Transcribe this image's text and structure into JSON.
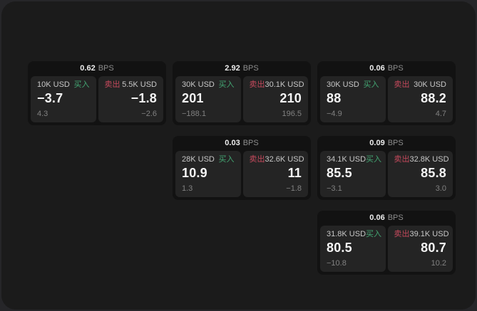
{
  "labels": {
    "bps_unit": "BPS",
    "buy": "买入",
    "sell": "卖出"
  },
  "colors": {
    "buy_green": "#43a572",
    "sell_red": "#c4495c",
    "backdrop": "#262629",
    "surface": "#1b1b1b",
    "card": "#121212",
    "subpanel": "#242424"
  },
  "cards": [
    {
      "col": 1,
      "row": 1,
      "bps": "0.62",
      "buy": {
        "amount": "10K USD",
        "price": "−3.7",
        "change": "4.3"
      },
      "sell": {
        "amount": "5.5K USD",
        "price": "−1.8",
        "change": "−2.6"
      }
    },
    {
      "col": 2,
      "row": 1,
      "bps": "2.92",
      "buy": {
        "amount": "30K USD",
        "price": "201",
        "change": "−188.1"
      },
      "sell": {
        "amount": "30.1K USD",
        "price": "210",
        "change": "196.5"
      }
    },
    {
      "col": 3,
      "row": 1,
      "bps": "0.06",
      "buy": {
        "amount": "30K USD",
        "price": "88",
        "change": "−4.9"
      },
      "sell": {
        "amount": "30K USD",
        "price": "88.2",
        "change": "4.7"
      }
    },
    {
      "col": 2,
      "row": 2,
      "bps": "0.03",
      "buy": {
        "amount": "28K USD",
        "price": "10.9",
        "change": "1.3"
      },
      "sell": {
        "amount": "32.6K USD",
        "price": "11",
        "change": "−1.8"
      }
    },
    {
      "col": 3,
      "row": 2,
      "bps": "0.09",
      "buy": {
        "amount": "34.1K USD",
        "price": "85.5",
        "change": "−3.1"
      },
      "sell": {
        "amount": "32.8K USD",
        "price": "85.8",
        "change": "3.0"
      }
    },
    {
      "col": 3,
      "row": 3,
      "bps": "0.06",
      "buy": {
        "amount": "31.8K USD",
        "price": "80.5",
        "change": "−10.8"
      },
      "sell": {
        "amount": "39.1K USD",
        "price": "80.7",
        "change": "10.2"
      }
    }
  ]
}
